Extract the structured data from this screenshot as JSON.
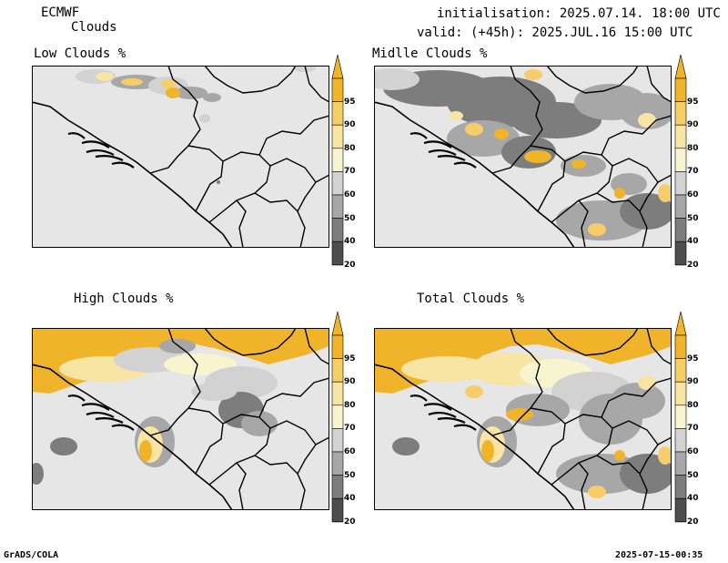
{
  "header": {
    "model": "ECMWF",
    "product": "Clouds",
    "initialisation": "initialisation: 2025.07.14. 18:00 UTC",
    "valid": "valid: (+45h): 2025.JUL.16 15:00 UTC"
  },
  "panels": [
    {
      "id": "low",
      "title": "Low Clouds %"
    },
    {
      "id": "middle",
      "title": "Midlle Clouds %"
    },
    {
      "id": "high",
      "title": "High Clouds %"
    },
    {
      "id": "total",
      "title": "Total Clouds %"
    }
  ],
  "colorbar": {
    "levels": [
      "95",
      "90",
      "80",
      "70",
      "60",
      "50",
      "40",
      "20"
    ],
    "colors": {
      "c95": "#f0b42b",
      "c90": "#f5cd69",
      "c80": "#f8e4a3",
      "c70": "#f7f4cf",
      "c60": "#d2d2d2",
      "c50": "#a7a7a7",
      "c40": "#7d7d7d",
      "c20": "#4d4d4d",
      "base": "#e6e6e6"
    }
  },
  "footer": {
    "left": "GrADS/COLA",
    "right": "2025-07-15-00:35"
  }
}
